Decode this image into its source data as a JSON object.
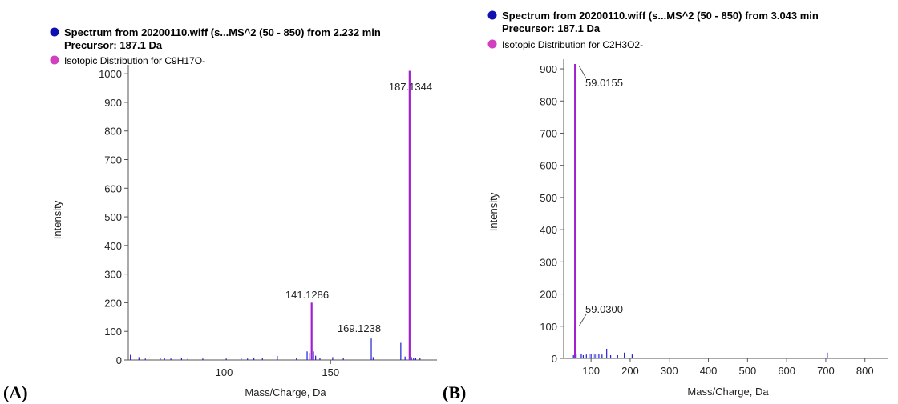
{
  "colors": {
    "spectrum": "#2020d0",
    "isotopic": "#a020d0",
    "spectrum_dot": "#1010b0",
    "isotopic_dot": "#d040c0",
    "axis": "#555555"
  },
  "chart_data": [
    {
      "panel_label": "(A)",
      "type": "bar",
      "legend": {
        "spectrum_name": "Spectrum from 20200110.wiff (s...MS^2 (50 - 850) from 2.232 min",
        "precursor": "Precursor: 187.1 Da",
        "isotopic_name": "Isotopic Distribution for C9H17O-"
      },
      "xlabel": "Mass/Charge, Da",
      "ylabel": "Intensity",
      "xlim": [
        55,
        200
      ],
      "ylim": [
        0,
        1020
      ],
      "xticks": [
        100,
        150
      ],
      "yticks": [
        0,
        100,
        200,
        300,
        400,
        500,
        600,
        700,
        800,
        900,
        1000
      ],
      "spectrum_peaks": [
        [
          56,
          18
        ],
        [
          60,
          10
        ],
        [
          63,
          5
        ],
        [
          70,
          7
        ],
        [
          72,
          6
        ],
        [
          75,
          5
        ],
        [
          80,
          6
        ],
        [
          83,
          5
        ],
        [
          90,
          5
        ],
        [
          101,
          5
        ],
        [
          108,
          6
        ],
        [
          111,
          5
        ],
        [
          114,
          7
        ],
        [
          118,
          6
        ],
        [
          125,
          14
        ],
        [
          134,
          8
        ],
        [
          139,
          30
        ],
        [
          140,
          25
        ],
        [
          141.1286,
          200
        ],
        [
          142,
          30
        ],
        [
          143,
          15
        ],
        [
          145,
          8
        ],
        [
          151,
          10
        ],
        [
          156,
          8
        ],
        [
          169.1238,
          75
        ],
        [
          170,
          10
        ],
        [
          183,
          60
        ],
        [
          185,
          12
        ],
        [
          187.1344,
          1010
        ],
        [
          188,
          10
        ],
        [
          189,
          8
        ],
        [
          190,
          8
        ],
        [
          192,
          6
        ]
      ],
      "isotopic_peaks": [
        [
          141.1286,
          200
        ],
        [
          187.1344,
          1010
        ]
      ],
      "annotations": [
        {
          "mz": 141.1286,
          "text": "141.1286"
        },
        {
          "mz": 169.1238,
          "text": "169.1238"
        },
        {
          "mz": 187.1344,
          "text": "187.1344"
        }
      ]
    },
    {
      "panel_label": "(B)",
      "type": "bar",
      "legend": {
        "spectrum_name": "Spectrum from 20200110.wiff (s...MS^2 (50 - 850) from 3.043 min",
        "precursor": "Precursor: 187.1 Da",
        "isotopic_name": "Isotopic Distribution for C2H3O2-"
      },
      "xlabel": "Mass/Charge, Da",
      "ylabel": "Intensity",
      "xlim": [
        30,
        860
      ],
      "ylim": [
        0,
        920
      ],
      "xticks": [
        100,
        200,
        300,
        400,
        500,
        600,
        700,
        800
      ],
      "yticks": [
        0,
        100,
        200,
        300,
        400,
        500,
        600,
        700,
        800,
        900
      ],
      "spectrum_peaks": [
        [
          55,
          10
        ],
        [
          58,
          15
        ],
        [
          59.0155,
          915
        ],
        [
          59.03,
          105
        ],
        [
          62,
          12
        ],
        [
          75,
          15
        ],
        [
          80,
          10
        ],
        [
          88,
          12
        ],
        [
          95,
          15
        ],
        [
          100,
          14
        ],
        [
          105,
          16
        ],
        [
          110,
          12
        ],
        [
          115,
          15
        ],
        [
          120,
          15
        ],
        [
          128,
          12
        ],
        [
          140,
          30
        ],
        [
          150,
          10
        ],
        [
          168,
          10
        ],
        [
          185,
          18
        ],
        [
          205,
          12
        ],
        [
          704,
          18
        ]
      ],
      "isotopic_peaks": [
        [
          59.0155,
          915
        ],
        [
          59.03,
          105
        ]
      ],
      "annotations": [
        {
          "mz": 59.0155,
          "text": "59.0155"
        },
        {
          "mz": 59.03,
          "text": "59.0300"
        }
      ]
    }
  ]
}
